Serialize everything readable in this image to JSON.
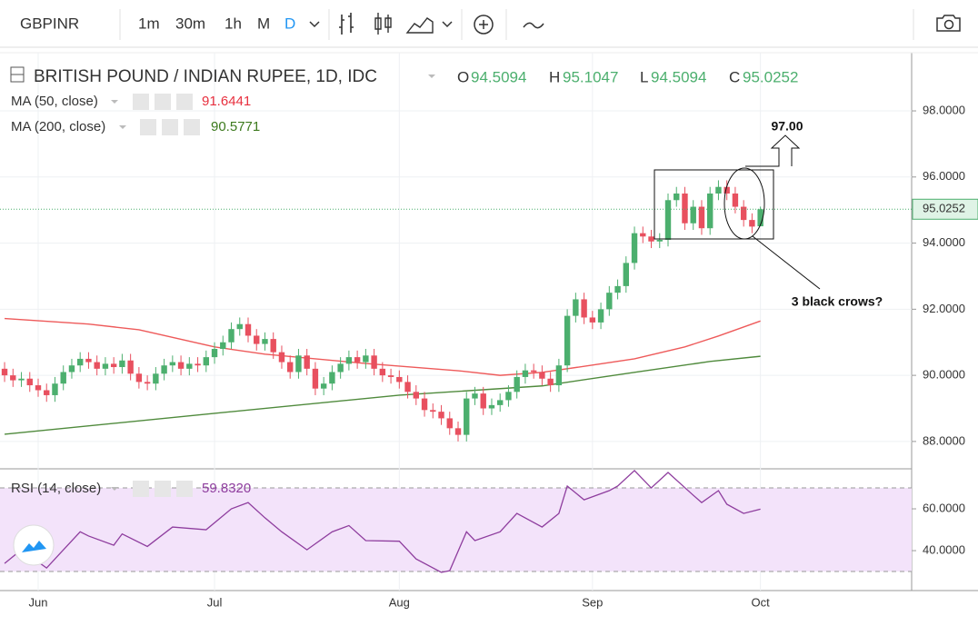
{
  "header": {
    "symbol": "GBPINR",
    "intervals": [
      "1m",
      "30m",
      "1h",
      "M",
      "D"
    ]
  },
  "chart_data": {
    "type": "candlestick",
    "title": "BRITISH POUND / INDIAN RUPEE, 1D, IDC",
    "ohlc_labels": [
      "O",
      "H",
      "L",
      "C"
    ],
    "categories": [
      null,
      null,
      null,
      null,
      "Jun",
      null,
      null,
      null,
      null,
      null,
      null,
      null,
      null,
      null,
      null,
      null,
      null,
      null,
      null,
      null,
      null,
      null,
      null,
      null,
      null,
      "Jul",
      null,
      null,
      null,
      null,
      null,
      null,
      null,
      null,
      null,
      null,
      null,
      null,
      null,
      null,
      null,
      null,
      null,
      null,
      null,
      null,
      null,
      "Aug",
      null,
      null,
      null,
      null,
      null,
      null,
      null,
      null,
      null,
      null,
      null,
      null,
      null,
      null,
      null,
      null,
      null,
      null,
      null,
      null,
      null,
      null,
      "Sep",
      null,
      null,
      null,
      null,
      null,
      null,
      null,
      null,
      null,
      null,
      null,
      null,
      null,
      null,
      null,
      null,
      null,
      null,
      null,
      "Oct"
    ],
    "open": [
      90.2,
      90.0,
      89.85,
      89.9,
      89.7,
      89.55,
      89.4,
      89.75,
      90.1,
      90.3,
      90.5,
      90.4,
      90.2,
      90.35,
      90.25,
      90.45,
      90.05,
      89.8,
      89.75,
      90.05,
      90.3,
      90.4,
      90.2,
      90.35,
      90.3,
      90.55,
      90.8,
      91.0,
      91.4,
      91.55,
      91.2,
      90.95,
      91.1,
      90.7,
      90.4,
      90.1,
      90.6,
      90.2,
      89.6,
      89.75,
      90.1,
      90.35,
      90.55,
      90.4,
      90.6,
      90.2,
      90.0,
      89.95,
      89.8,
      89.5,
      89.3,
      88.95,
      88.9,
      88.7,
      88.4,
      88.2,
      89.3,
      89.45,
      89.0,
      89.1,
      89.25,
      89.5,
      89.95,
      90.15,
      90.1,
      89.9,
      89.7,
      90.3,
      91.8,
      92.3,
      91.75,
      91.6,
      92.0,
      92.5,
      92.7,
      93.4,
      94.3,
      94.2,
      94.05,
      94.1,
      95.3,
      95.5,
      94.6,
      95.1,
      94.45,
      95.5,
      95.7,
      95.5,
      95.1,
      94.7,
      94.5094
    ],
    "high": [
      90.4,
      90.2,
      90.1,
      90.1,
      89.9,
      89.75,
      89.95,
      90.3,
      90.5,
      90.7,
      90.7,
      90.6,
      90.55,
      90.55,
      90.65,
      90.65,
      90.25,
      90.0,
      90.25,
      90.5,
      90.6,
      90.6,
      90.55,
      90.55,
      90.75,
      91.0,
      91.2,
      91.6,
      91.75,
      91.75,
      91.4,
      91.3,
      91.3,
      90.9,
      90.6,
      90.8,
      90.8,
      90.4,
      89.95,
      90.3,
      90.55,
      90.75,
      90.75,
      90.8,
      90.8,
      90.4,
      90.2,
      90.15,
      90.0,
      89.7,
      89.5,
      89.15,
      89.1,
      88.9,
      88.6,
      89.5,
      89.65,
      89.65,
      89.3,
      89.45,
      89.7,
      90.15,
      90.35,
      90.35,
      90.3,
      90.1,
      90.5,
      92.0,
      92.5,
      92.5,
      91.95,
      92.2,
      92.7,
      92.9,
      93.6,
      94.5,
      94.5,
      94.4,
      94.3,
      95.5,
      95.7,
      95.7,
      95.3,
      95.3,
      95.7,
      95.9,
      95.9,
      95.7,
      95.3,
      94.9,
      95.1047
    ],
    "low": [
      89.8,
      89.65,
      89.65,
      89.5,
      89.35,
      89.2,
      89.2,
      89.55,
      89.9,
      90.1,
      90.2,
      90.0,
      90.0,
      90.05,
      90.05,
      89.85,
      89.6,
      89.55,
      89.55,
      89.85,
      90.1,
      90.0,
      90.0,
      90.1,
      90.1,
      90.35,
      90.6,
      90.8,
      91.2,
      91.0,
      90.75,
      90.75,
      90.5,
      90.2,
      89.9,
      89.9,
      90.0,
      89.4,
      89.4,
      89.55,
      89.9,
      90.15,
      90.2,
      90.2,
      90.0,
      89.8,
      89.75,
      89.6,
      89.3,
      89.1,
      88.75,
      88.7,
      88.5,
      88.2,
      88.0,
      88.0,
      89.1,
      88.8,
      88.8,
      88.9,
      89.05,
      89.3,
      89.75,
      89.9,
      89.7,
      89.5,
      89.5,
      90.1,
      91.6,
      91.55,
      91.4,
      91.4,
      91.8,
      92.3,
      92.5,
      93.2,
      94.0,
      93.85,
      93.85,
      93.9,
      95.1,
      94.4,
      94.4,
      94.25,
      94.25,
      95.3,
      95.3,
      94.9,
      94.5,
      94.3,
      94.5094
    ],
    "close": [
      90.0,
      89.85,
      89.9,
      89.7,
      89.55,
      89.4,
      89.75,
      90.1,
      90.3,
      90.5,
      90.4,
      90.2,
      90.35,
      90.25,
      90.45,
      90.05,
      89.8,
      89.75,
      90.05,
      90.3,
      90.4,
      90.2,
      90.35,
      90.3,
      90.55,
      90.8,
      91.0,
      91.4,
      91.55,
      91.2,
      90.95,
      91.1,
      90.7,
      90.4,
      90.1,
      90.6,
      90.2,
      89.6,
      89.75,
      90.1,
      90.35,
      90.55,
      90.4,
      90.6,
      90.2,
      90.0,
      89.95,
      89.8,
      89.5,
      89.3,
      88.95,
      88.9,
      88.7,
      88.4,
      88.2,
      89.3,
      89.45,
      89.0,
      89.1,
      89.25,
      89.5,
      89.95,
      90.15,
      90.1,
      89.9,
      89.7,
      90.3,
      91.8,
      92.3,
      91.75,
      91.6,
      92.0,
      92.5,
      92.7,
      93.4,
      94.3,
      94.2,
      94.05,
      94.1,
      95.3,
      95.5,
      94.6,
      95.1,
      94.45,
      95.5,
      95.7,
      95.5,
      95.1,
      94.7,
      94.5,
      95.0252
    ],
    "up_color": "#4caf6e",
    "down_color": "#e8505f",
    "ylim": [
      87.2,
      99.76
    ],
    "yticks": [
      {
        "value": 88,
        "label": "88.0000"
      },
      {
        "value": 90,
        "label": "90.0000"
      },
      {
        "value": 92,
        "label": "92.0000"
      },
      {
        "value": 94,
        "label": "94.0000"
      },
      {
        "value": 96,
        "label": "96.0000"
      },
      {
        "value": 98,
        "label": "98.0000"
      }
    ],
    "series": [
      {
        "name": "MA (50, close)",
        "color": "#ee5a5a",
        "x": [
          0,
          10,
          16,
          25,
          31,
          43,
          54,
          59,
          64,
          70,
          75,
          81,
          85,
          90
        ],
        "values": [
          91.72,
          91.55,
          91.38,
          90.86,
          90.64,
          90.36,
          90.14,
          90.0,
          90.09,
          90.31,
          90.5,
          90.86,
          91.19,
          91.6441
        ]
      },
      {
        "name": "MA (200, close)",
        "color": "#4f8a3c",
        "x": [
          0,
          25,
          47,
          64,
          75,
          84,
          90
        ],
        "values": [
          88.22,
          88.85,
          89.4,
          89.68,
          90.09,
          90.42,
          90.5771
        ]
      }
    ],
    "annotations": [
      "97.00",
      "3 black crows?"
    ],
    "rsi": {
      "name": "RSI (14, close)",
      "color": "#8e3d9e",
      "last_label": "59.8320",
      "x": [
        0,
        2,
        5,
        7,
        9,
        10,
        13,
        14,
        17,
        20,
        24,
        27,
        29,
        31,
        33,
        36,
        39,
        41,
        43,
        47,
        49,
        52,
        53,
        55,
        56,
        59,
        61,
        64,
        66,
        67,
        69,
        72,
        73,
        75,
        77,
        79,
        82,
        83,
        85,
        86,
        88,
        90
      ],
      "values": [
        33.9,
        40.4,
        31.7,
        40.4,
        49,
        47,
        42.6,
        48,
        42,
        51.3,
        50,
        60,
        63,
        55.7,
        49,
        40.4,
        49,
        52,
        44.8,
        44.5,
        36,
        29.6,
        30.4,
        49,
        44.8,
        49,
        57.8,
        51.3,
        57.8,
        70.9,
        64.3,
        68.7,
        70.9,
        78.3,
        70,
        77.4,
        66.5,
        63,
        68.7,
        62.2,
        57.8,
        59.832
      ],
      "ylim": [
        20.9,
        78.7
      ],
      "yticks": [
        {
          "value": 40,
          "label": "40.0000"
        },
        {
          "value": 60,
          "label": "60.0000"
        }
      ],
      "bands": [
        30,
        70
      ],
      "band_color": "#f3e3fa"
    }
  }
}
